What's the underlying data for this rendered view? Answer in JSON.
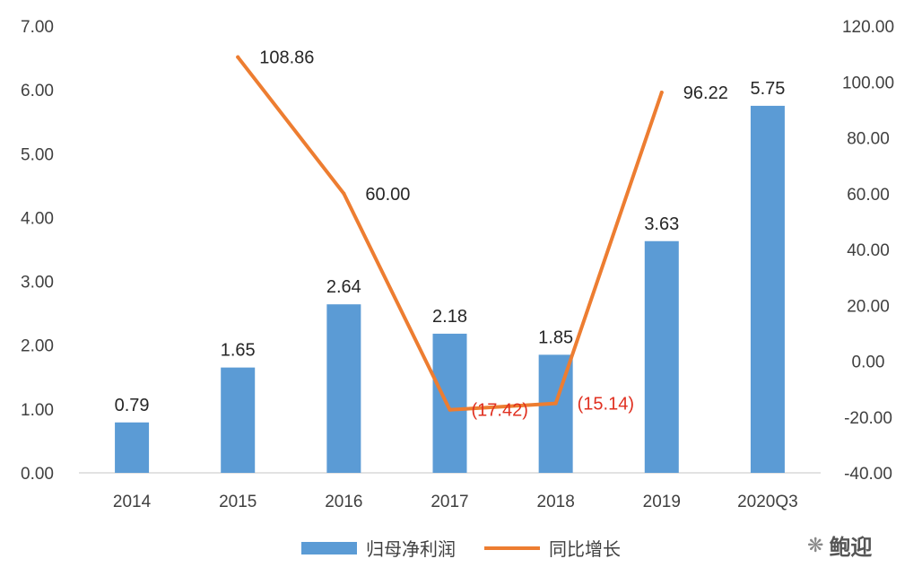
{
  "chart_data": {
    "type": "bar+line",
    "categories": [
      "2014",
      "2015",
      "2016",
      "2017",
      "2018",
      "2019",
      "2020Q3"
    ],
    "series": [
      {
        "name": "归母净利润",
        "type": "bar",
        "axis": "left",
        "color": "#5b9bd5",
        "values": [
          0.79,
          1.65,
          2.64,
          2.18,
          1.85,
          3.63,
          5.75
        ],
        "labels": [
          "0.79",
          "1.65",
          "2.64",
          "2.18",
          "1.85",
          "3.63",
          "5.75"
        ]
      },
      {
        "name": "同比增长",
        "type": "line",
        "axis": "right",
        "color": "#ed7d31",
        "values": [
          null,
          108.86,
          60.0,
          -17.42,
          -15.14,
          96.22,
          null
        ],
        "labels": [
          null,
          "108.86",
          "60.00",
          "(17.42)",
          "(15.14)",
          "96.22",
          null
        ]
      }
    ],
    "y_left": {
      "min": 0,
      "max": 7,
      "ticks": [
        "0.00",
        "1.00",
        "2.00",
        "3.00",
        "4.00",
        "5.00",
        "6.00",
        "7.00"
      ]
    },
    "y_right": {
      "min": -40,
      "max": 120,
      "ticks": [
        "-40.00",
        "-20.00",
        "0.00",
        "20.00",
        "40.00",
        "60.00",
        "80.00",
        "100.00",
        "120.00"
      ]
    },
    "negative_label_color": "#e03020",
    "legend_position": "bottom",
    "grid": false
  },
  "watermark": {
    "icon": "wechat-icon",
    "text": "鲍迎"
  }
}
